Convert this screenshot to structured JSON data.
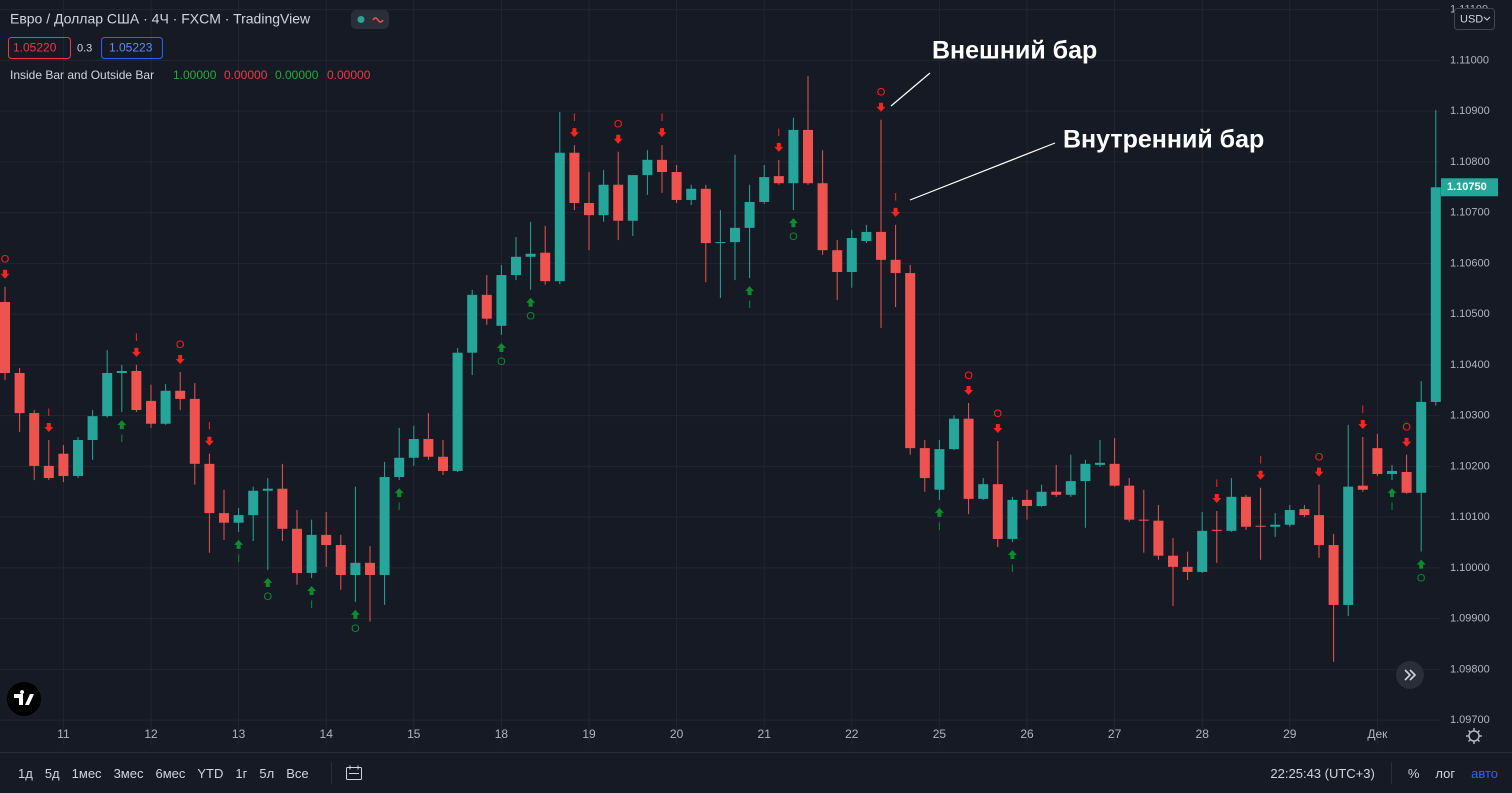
{
  "header": {
    "symbol": "Евро / Доллар США · 4Ч · FXCM · TradingView",
    "bid": "1.05220",
    "spread": "0.3",
    "ask": "1.05223"
  },
  "indicator": {
    "name": "Inside Bar and Outside Bar",
    "values": [
      "1.00000",
      "0.00000",
      "0.00000",
      "0.00000"
    ]
  },
  "price_axis": {
    "currency": "USD",
    "last_price_label": "1.10750"
  },
  "toolbar": {
    "ranges": [
      "1д",
      "5д",
      "1мес",
      "3мес",
      "6мес",
      "YTD",
      "1г",
      "5л",
      "Все"
    ],
    "time": "22:25:43 (UTC+3)",
    "percent": "%",
    "log": "лог",
    "auto": "авто"
  },
  "chart_data": {
    "type": "candlestick",
    "annotations": [
      "Внешний бар",
      "Внутренний бар"
    ],
    "up_color": "#26a69a",
    "down_color": "#ef5350",
    "grid": true,
    "signal_above_color": "#f7251c",
    "signal_below_color": "#0f8a2c",
    "ylim": [
      1.09651,
      1.11119
    ],
    "yticks": [
      {
        "value": 1.097,
        "label": "1.09700"
      },
      {
        "value": 1.098,
        "label": "1.09800"
      },
      {
        "value": 1.099,
        "label": "1.09900"
      },
      {
        "value": 1.1,
        "label": "1.10000"
      },
      {
        "value": 1.101,
        "label": "1.10100"
      },
      {
        "value": 1.102,
        "label": "1.10200"
      },
      {
        "value": 1.103,
        "label": "1.10300"
      },
      {
        "value": 1.104,
        "label": "1.10400"
      },
      {
        "value": 1.105,
        "label": "1.10500"
      },
      {
        "value": 1.106,
        "label": "1.10600"
      },
      {
        "value": 1.107,
        "label": "1.10700"
      },
      {
        "value": 1.108,
        "label": "1.10800"
      },
      {
        "value": 1.109,
        "label": "1.10900"
      },
      {
        "value": 1.11,
        "label": "1.11000"
      },
      {
        "value": 1.111,
        "label": "1.11100"
      }
    ],
    "categories": [
      null,
      null,
      null,
      null,
      "11",
      null,
      null,
      null,
      null,
      null,
      "12",
      null,
      null,
      null,
      null,
      null,
      "13",
      null,
      null,
      null,
      null,
      null,
      "14",
      null,
      null,
      null,
      null,
      null,
      "15",
      null,
      null,
      null,
      null,
      null,
      "18",
      null,
      null,
      null,
      null,
      null,
      "19",
      null,
      null,
      null,
      null,
      null,
      "20",
      null,
      null,
      null,
      null,
      null,
      "21",
      null,
      null,
      null,
      null,
      null,
      "22",
      null,
      null,
      null,
      null,
      null,
      "25",
      null,
      null,
      null,
      null,
      null,
      "26",
      null,
      null,
      null,
      null,
      null,
      "27",
      null,
      null,
      null,
      null,
      null,
      "28",
      null,
      null,
      null,
      null,
      null,
      "29",
      null,
      null,
      null,
      null,
      null,
      "Дек",
      null,
      null,
      null,
      null
    ],
    "open": [
      1.10524,
      1.10384,
      1.10305,
      1.10201,
      1.10225,
      1.10181,
      1.10252,
      1.10299,
      1.10384,
      1.10388,
      1.10329,
      1.10284,
      1.10349,
      1.10333,
      1.10205,
      1.10108,
      1.10089,
      1.10104,
      1.10152,
      1.10156,
      1.10077,
      1.0999,
      1.10065,
      1.10045,
      1.09986,
      1.1001,
      1.09986,
      1.10179,
      1.10217,
      1.10254,
      1.10219,
      1.10191,
      1.10424,
      1.10538,
      1.10477,
      1.10577,
      1.10613,
      1.10621,
      1.10565,
      1.10818,
      1.10719,
      1.10695,
      1.10755,
      1.10684,
      1.10774,
      1.10804,
      1.1078,
      1.10725,
      1.10747,
      1.1064,
      1.10642,
      1.1067,
      1.10721,
      1.10772,
      1.10758,
      1.10863,
      1.10758,
      1.10626,
      1.10583,
      1.10644,
      1.10662,
      1.10607,
      1.10581,
      1.10236,
      1.10154,
      1.10234,
      1.10294,
      1.10136,
      1.10165,
      1.10057,
      1.10134,
      1.10122,
      1.1015,
      1.10144,
      1.10171,
      1.10203,
      1.10205,
      1.10162,
      1.10095,
      1.10093,
      1.10024,
      1.10002,
      1.09992,
      1.10075,
      1.10073,
      1.1014,
      1.10083,
      1.10081,
      1.10085,
      1.10116,
      1.10104,
      1.10045,
      1.09927,
      1.10162,
      1.10236,
      1.10185,
      1.10189,
      1.10148,
      1.10327
    ],
    "high": [
      1.10554,
      1.10394,
      1.10311,
      1.10252,
      1.10242,
      1.10258,
      1.10311,
      1.10429,
      1.104,
      1.104,
      1.10361,
      1.10362,
      1.10386,
      1.10364,
      1.10225,
      1.10154,
      1.10118,
      1.1016,
      1.10177,
      1.10205,
      1.10114,
      1.10095,
      1.1011,
      1.10065,
      1.1016,
      1.10043,
      1.10209,
      1.10276,
      1.1028,
      1.10305,
      1.10252,
      1.10433,
      1.10548,
      1.10577,
      1.10597,
      1.10652,
      1.10682,
      1.10674,
      1.10898,
      1.10833,
      1.1078,
      1.10784,
      1.1082,
      1.10774,
      1.10823,
      1.10833,
      1.10794,
      1.10755,
      1.10755,
      1.10705,
      1.10814,
      1.10755,
      1.10794,
      1.10804,
      1.10887,
      1.10969,
      1.10823,
      1.10646,
      1.10666,
      1.10676,
      1.10883,
      1.10676,
      1.10597,
      1.10252,
      1.10252,
      1.10301,
      1.10325,
      1.10177,
      1.1025,
      1.1014,
      1.10154,
      1.10164,
      1.10203,
      1.10223,
      1.10213,
      1.10252,
      1.10256,
      1.10177,
      1.10154,
      1.10124,
      1.10059,
      1.10032,
      1.1011,
      1.10112,
      1.10177,
      1.10144,
      1.10158,
      1.10108,
      1.10124,
      1.10124,
      1.10164,
      1.10067,
      1.10282,
      1.10258,
      1.10264,
      1.10203,
      1.10223,
      1.10368,
      1.10902
    ],
    "low": [
      1.1037,
      1.10268,
      1.10173,
      1.10173,
      1.10169,
      1.10177,
      1.10213,
      1.10296,
      1.10307,
      1.10307,
      1.10276,
      1.10282,
      1.10311,
      1.10164,
      1.1003,
      1.10055,
      1.10071,
      1.10053,
      1.09996,
      1.10053,
      1.09967,
      1.0998,
      1.10002,
      1.09957,
      1.09933,
      1.09894,
      1.09927,
      1.10173,
      1.10201,
      1.10213,
      1.10183,
      1.10189,
      1.1038,
      1.10479,
      1.10459,
      1.10567,
      1.10548,
      1.10558,
      1.10559,
      1.10705,
      1.10626,
      1.10682,
      1.10646,
      1.10654,
      1.10735,
      1.10739,
      1.10719,
      1.10715,
      1.10563,
      1.10532,
      1.10567,
      1.10571,
      1.10717,
      1.10755,
      1.10705,
      1.10755,
      1.10617,
      1.10528,
      1.10552,
      1.1064,
      1.10473,
      1.10514,
      1.10223,
      1.1015,
      1.10134,
      1.10232,
      1.10106,
      1.10134,
      1.10041,
      1.10051,
      1.10095,
      1.1012,
      1.1014,
      1.1014,
      1.10079,
      1.10199,
      1.1016,
      1.10091,
      1.1003,
      1.10016,
      1.09925,
      1.09976,
      1.0999,
      1.1001,
      1.10071,
      1.10075,
      1.10016,
      1.10061,
      1.10081,
      1.101,
      1.1002,
      1.09815,
      1.09905,
      1.1015,
      1.10181,
      1.10173,
      1.10146,
      1.10032,
      1.1032
    ],
    "close": [
      1.10384,
      1.10305,
      1.10201,
      1.10177,
      1.10181,
      1.10252,
      1.10299,
      1.10384,
      1.10388,
      1.10311,
      1.10284,
      1.10349,
      1.10333,
      1.10205,
      1.10108,
      1.10089,
      1.10104,
      1.10152,
      1.10156,
      1.10077,
      1.0999,
      1.10065,
      1.10045,
      1.09986,
      1.1001,
      1.09986,
      1.10179,
      1.10217,
      1.10254,
      1.10219,
      1.10191,
      1.10424,
      1.10538,
      1.10491,
      1.10577,
      1.10613,
      1.10619,
      1.10565,
      1.10818,
      1.10719,
      1.10695,
      1.10755,
      1.10684,
      1.10774,
      1.10804,
      1.1078,
      1.10725,
      1.10747,
      1.1064,
      1.10642,
      1.1067,
      1.10721,
      1.1077,
      1.10758,
      1.10863,
      1.10758,
      1.10626,
      1.10583,
      1.1065,
      1.10662,
      1.10607,
      1.10581,
      1.10236,
      1.10177,
      1.10234,
      1.10294,
      1.10136,
      1.10165,
      1.10057,
      1.10134,
      1.10122,
      1.1015,
      1.10144,
      1.10171,
      1.10205,
      1.10207,
      1.10162,
      1.10095,
      1.10093,
      1.10024,
      1.10002,
      1.09992,
      1.10073,
      1.10073,
      1.1014,
      1.10081,
      1.10081,
      1.10085,
      1.10114,
      1.10104,
      1.10045,
      1.09927,
      1.1016,
      1.10154,
      1.10185,
      1.10191,
      1.10148,
      1.10327,
      1.1075
    ],
    "signals_above": [
      "O",
      null,
      null,
      "I",
      null,
      null,
      null,
      null,
      null,
      "I",
      null,
      null,
      "O",
      null,
      "I",
      null,
      null,
      null,
      null,
      null,
      null,
      null,
      null,
      null,
      null,
      null,
      null,
      null,
      null,
      null,
      null,
      null,
      null,
      null,
      null,
      null,
      null,
      null,
      null,
      "I",
      null,
      null,
      "O",
      null,
      null,
      "I",
      null,
      null,
      null,
      null,
      null,
      null,
      null,
      "I",
      null,
      null,
      null,
      null,
      null,
      null,
      "O",
      "I",
      null,
      null,
      null,
      null,
      "O",
      null,
      "O",
      null,
      null,
      null,
      null,
      null,
      null,
      null,
      null,
      null,
      null,
      null,
      null,
      null,
      null,
      "I",
      null,
      null,
      "I",
      null,
      null,
      null,
      "O",
      null,
      null,
      "I",
      null,
      null,
      "O",
      null,
      null
    ],
    "signals_below": [
      null,
      null,
      null,
      null,
      null,
      null,
      null,
      null,
      "I",
      null,
      null,
      null,
      null,
      null,
      null,
      null,
      "I",
      null,
      "O",
      null,
      null,
      "I",
      null,
      null,
      "O",
      null,
      null,
      "I",
      null,
      null,
      null,
      null,
      null,
      null,
      "O",
      null,
      "O",
      null,
      null,
      null,
      null,
      null,
      null,
      null,
      null,
      null,
      null,
      null,
      null,
      null,
      null,
      "I",
      null,
      null,
      "O",
      null,
      null,
      null,
      null,
      null,
      null,
      null,
      null,
      null,
      "I",
      null,
      null,
      null,
      null,
      "I",
      null,
      null,
      null,
      null,
      null,
      null,
      null,
      null,
      null,
      null,
      null,
      null,
      null,
      null,
      null,
      null,
      null,
      null,
      null,
      null,
      null,
      null,
      null,
      null,
      null,
      "I",
      null,
      "O",
      null
    ]
  }
}
